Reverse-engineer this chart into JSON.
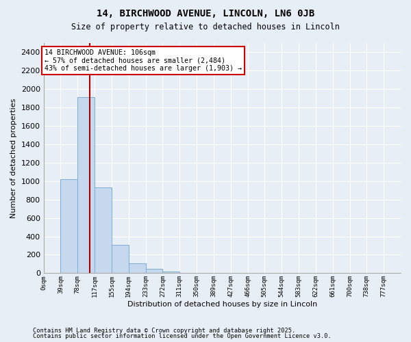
{
  "title1": "14, BIRCHWOOD AVENUE, LINCOLN, LN6 0JB",
  "title2": "Size of property relative to detached houses in Lincoln",
  "xlabel": "Distribution of detached houses by size in Lincoln",
  "ylabel": "Number of detached properties",
  "bar_labels": [
    "0sqm",
    "39sqm",
    "78sqm",
    "117sqm",
    "155sqm",
    "194sqm",
    "233sqm",
    "272sqm",
    "311sqm",
    "350sqm",
    "389sqm",
    "427sqm",
    "466sqm",
    "505sqm",
    "544sqm",
    "583sqm",
    "622sqm",
    "661sqm",
    "700sqm",
    "738sqm",
    "777sqm"
  ],
  "bar_values": [
    0,
    1020,
    1910,
    930,
    310,
    105,
    50,
    20,
    0,
    0,
    0,
    0,
    0,
    0,
    0,
    0,
    0,
    0,
    0,
    0,
    0
  ],
  "bar_color": "#c5d8ed",
  "bar_edge_color": "#7badd4",
  "background_color": "#e8eef5",
  "grid_color": "#ffffff",
  "annotation_line1": "14 BIRCHWOOD AVENUE: 106sqm",
  "annotation_line2": "← 57% of detached houses are smaller (2,484)",
  "annotation_line3": "43% of semi-detached houses are larger (1,903) →",
  "annotation_box_color": "#ffffff",
  "annotation_box_edge_color": "#cc0000",
  "vline_x": 106,
  "vline_color": "#aa0000",
  "ylim": [
    0,
    2500
  ],
  "yticks": [
    0,
    200,
    400,
    600,
    800,
    1000,
    1200,
    1400,
    1600,
    1800,
    2000,
    2200,
    2400
  ],
  "bin_width": 39,
  "footnote1": "Contains HM Land Registry data © Crown copyright and database right 2025.",
  "footnote2": "Contains public sector information licensed under the Open Government Licence v3.0."
}
